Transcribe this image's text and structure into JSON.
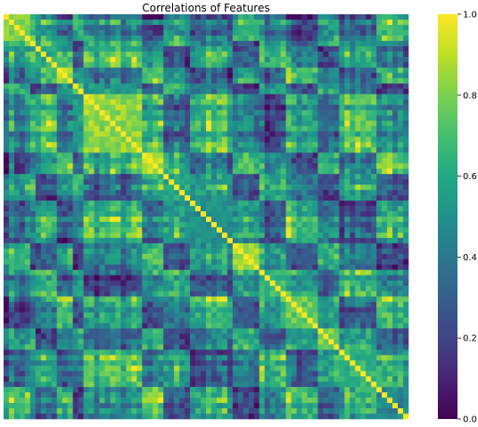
{
  "chart_data": {
    "type": "heatmap",
    "title": "Correlations of Features",
    "xlabel": "",
    "ylabel": "",
    "colormap": "viridis",
    "value_range": [
      0.0,
      1.0
    ],
    "colorbar": {
      "ticks": [
        0.0,
        0.2,
        0.4,
        0.6,
        0.8,
        1.0
      ],
      "tick_labels": [
        "0.0",
        "0.2",
        "0.4",
        "0.6",
        "0.8",
        "1.0"
      ]
    },
    "grid": false,
    "legend": "right",
    "matrix_description_blocks": [
      {
        "start": 0.0,
        "end": 0.06,
        "mean": 0.92
      },
      {
        "start": 0.08,
        "end": 0.13,
        "mean": 0.7
      },
      {
        "start": 0.13,
        "end": 0.17,
        "mean": 0.95
      },
      {
        "start": 0.17,
        "end": 0.2,
        "mean": 0.75
      },
      {
        "start": 0.2,
        "end": 0.34,
        "mean": 0.93
      },
      {
        "start": 0.34,
        "end": 0.4,
        "mean": 0.98
      },
      {
        "start": 0.4,
        "end": 0.46,
        "mean": 0.68
      },
      {
        "start": 0.46,
        "end": 0.56,
        "mean": 0.6
      },
      {
        "start": 0.56,
        "end": 0.63,
        "mean": 0.96
      },
      {
        "start": 0.63,
        "end": 0.7,
        "mean": 0.75
      },
      {
        "start": 0.7,
        "end": 0.78,
        "mean": 0.85
      },
      {
        "start": 0.78,
        "end": 0.83,
        "mean": 0.9
      },
      {
        "start": 0.83,
        "end": 0.92,
        "mean": 0.72
      },
      {
        "start": 0.92,
        "end": 1.0,
        "mean": 0.55
      }
    ]
  }
}
